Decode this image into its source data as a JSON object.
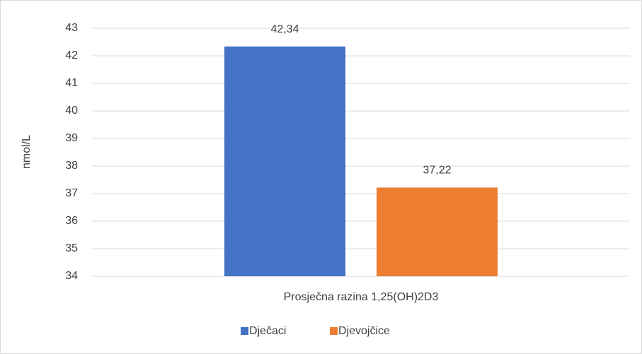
{
  "chart_data": {
    "type": "bar",
    "categories": [
      "Prosječna razina 1,25(OH)2D3"
    ],
    "series": [
      {
        "name": "Dječaci",
        "color": "#4472c4",
        "values": [
          42.34
        ],
        "value_labels": [
          "42,34"
        ]
      },
      {
        "name": "Djevojčice",
        "color": "#ed7d31",
        "values": [
          37.22
        ],
        "value_labels": [
          "37,22"
        ]
      }
    ],
    "y_label": "nmol/L",
    "ylim": [
      34,
      43
    ],
    "yticks": [
      34,
      35,
      36,
      37,
      38,
      39,
      40,
      41,
      42,
      43
    ],
    "grid": true,
    "legend": "bottom"
  }
}
